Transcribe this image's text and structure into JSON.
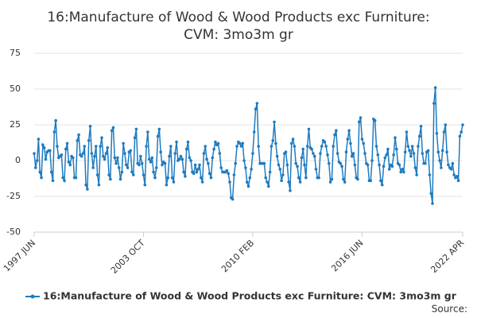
{
  "chart_data": {
    "type": "line",
    "title": [
      "16:Manufacture of Wood & Wood Products exc Furniture:",
      "CVM: 3mo3m gr"
    ],
    "source": "Source:",
    "categories": [
      "1997 JUN",
      null,
      null,
      null,
      null,
      null,
      null,
      null,
      null,
      null,
      null,
      null,
      null,
      null,
      null,
      null,
      null,
      null,
      null,
      null,
      null,
      null,
      null,
      null,
      null,
      null,
      null,
      null,
      null,
      null,
      null,
      null,
      null,
      null,
      null,
      null,
      null,
      null,
      null,
      null,
      null,
      null,
      null,
      null,
      null,
      null,
      null,
      null,
      null,
      null,
      null,
      null,
      null,
      null,
      null,
      null,
      null,
      null,
      null,
      null,
      null,
      null,
      null,
      null,
      null,
      null,
      null,
      null,
      null,
      null,
      null,
      null,
      null,
      null,
      null,
      null,
      "2003 OCT",
      null,
      null,
      null,
      null,
      null,
      null,
      null,
      null,
      null,
      null,
      null,
      null,
      null,
      null,
      null,
      null,
      null,
      null,
      null,
      null,
      null,
      null,
      null,
      null,
      null,
      null,
      null,
      null,
      null,
      null,
      null,
      null,
      null,
      null,
      null,
      null,
      null,
      null,
      null,
      null,
      null,
      null,
      null,
      null,
      null,
      null,
      null,
      null,
      null,
      null,
      null,
      null,
      null,
      null,
      null,
      null,
      null,
      null,
      null,
      null,
      null,
      null,
      null,
      null,
      null,
      null,
      null,
      null,
      null,
      null,
      null,
      null,
      null,
      null,
      null,
      "2010 FEB",
      null,
      null,
      null,
      null,
      null,
      null,
      null,
      null,
      null,
      null,
      null,
      null,
      null,
      null,
      null,
      null,
      null,
      null,
      null,
      null,
      null,
      null,
      null,
      null,
      null,
      null,
      null,
      null,
      null,
      null,
      null,
      null,
      null,
      null,
      null,
      null,
      null,
      null,
      null,
      null,
      null,
      null,
      null,
      null,
      null,
      null,
      null,
      null,
      null,
      null,
      null,
      null,
      null,
      null,
      null,
      null,
      null,
      null,
      null,
      null,
      null,
      null,
      null,
      null,
      null,
      null,
      null,
      null,
      null,
      null,
      null,
      null,
      null,
      null,
      null,
      "2016 JUN",
      null,
      null,
      null,
      null,
      null,
      null,
      null,
      null,
      null,
      null,
      null,
      null,
      null,
      null,
      null,
      null,
      null,
      null,
      null,
      null,
      null,
      null,
      null,
      null,
      null,
      null,
      null,
      null,
      null,
      null,
      null,
      null,
      null,
      null,
      null,
      null,
      null,
      null,
      null,
      null,
      null,
      null,
      null,
      null,
      null,
      null,
      null,
      null,
      null,
      null,
      null,
      null,
      null,
      null,
      null,
      null,
      null,
      null,
      null,
      null,
      null,
      null,
      null,
      null,
      null,
      null,
      null,
      null,
      null,
      "2022 APR"
    ],
    "series": [
      {
        "name": "16:Manufacture of Wood & Wood Products exc Furniture: CVM: 3mo3m gr",
        "color": "#1f7bbf",
        "values": [
          5,
          -5,
          0,
          15,
          -8,
          -12,
          11,
          9,
          1,
          6,
          7,
          7,
          -8,
          -14,
          20,
          28,
          10,
          2,
          3,
          4,
          -12,
          -14,
          8,
          12,
          -1,
          -3,
          3,
          2,
          -12,
          -12,
          14,
          18,
          4,
          3,
          5,
          10,
          -17,
          -20,
          14,
          24,
          5,
          -5,
          3,
          10,
          -10,
          -17,
          10,
          16,
          3,
          1,
          5,
          9,
          -10,
          -13,
          21,
          23,
          2,
          -2,
          2,
          -5,
          -13,
          -8,
          12,
          5,
          -3,
          -5,
          6,
          7,
          -8,
          -10,
          16,
          22,
          -2,
          -3,
          3,
          -2,
          -10,
          -17,
          10,
          20,
          1,
          -1,
          2,
          -8,
          -12,
          -5,
          17,
          22,
          6,
          -3,
          -1,
          -2,
          -17,
          -12,
          3,
          10,
          -12,
          -15,
          5,
          13,
          0,
          1,
          3,
          1,
          -8,
          -11,
          8,
          13,
          2,
          0,
          -8,
          -9,
          -3,
          -8,
          -6,
          -3,
          -12,
          -15,
          5,
          10,
          1,
          -2,
          -9,
          -12,
          2,
          8,
          13,
          11,
          12,
          5,
          -5,
          -8,
          -8,
          -8,
          -7,
          -9,
          -15,
          -26,
          -27,
          -10,
          -2,
          10,
          13,
          12,
          10,
          12,
          0,
          -5,
          -15,
          -18,
          -12,
          -6,
          5,
          20,
          36,
          40,
          10,
          -2,
          -2,
          -2,
          -2,
          -12,
          -15,
          -18,
          -8,
          10,
          14,
          27,
          12,
          3,
          -3,
          -6,
          -14,
          -10,
          5,
          6,
          -3,
          -15,
          -21,
          12,
          15,
          10,
          -2,
          -4,
          -12,
          -15,
          2,
          8,
          -3,
          -12,
          10,
          22,
          9,
          8,
          5,
          3,
          -6,
          -12,
          -12,
          5,
          10,
          14,
          13,
          10,
          4,
          -2,
          -15,
          -13,
          10,
          18,
          21,
          5,
          -1,
          -2,
          -4,
          -13,
          -15,
          6,
          15,
          21,
          12,
          3,
          5,
          -3,
          -12,
          -13,
          27,
          30,
          15,
          12,
          5,
          -2,
          -3,
          -14,
          -14,
          0,
          29,
          28,
          10,
          4,
          -3,
          -14,
          -17,
          -4,
          2,
          4,
          8,
          -6,
          -3,
          -4,
          4,
          16,
          8,
          -2,
          -3,
          -8,
          -6,
          -8,
          6,
          20,
          10,
          7,
          3,
          10,
          5,
          -5,
          -10,
          10,
          17,
          24,
          5,
          -2,
          -2,
          6,
          7,
          -10,
          -23,
          -30,
          40,
          51,
          19,
          6,
          0,
          -5,
          7,
          20,
          25,
          6,
          -3,
          -5,
          -6,
          -2,
          -10,
          -12,
          -11,
          -14,
          17,
          20,
          25
        ]
      }
    ],
    "ylim": [
      -50,
      75
    ],
    "yticks": [
      -50,
      -25,
      0,
      25,
      50,
      75
    ],
    "grid": true,
    "legend": "bottom"
  }
}
